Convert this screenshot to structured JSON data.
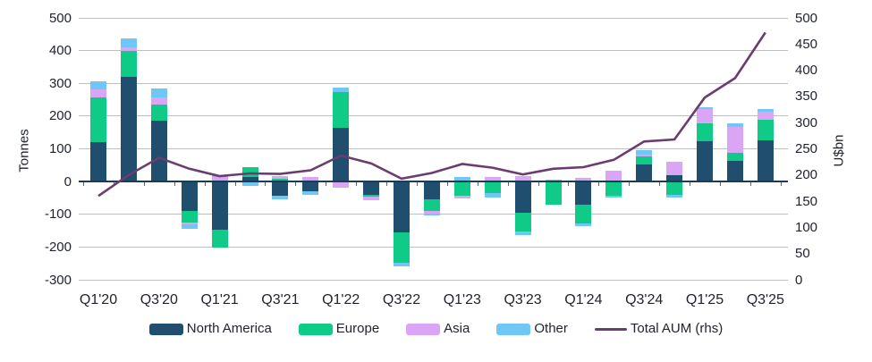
{
  "chart_data": {
    "type": "combo-stacked-bar-line",
    "title": "",
    "categories": [
      "Q1'20",
      "Q2'20",
      "Q3'20",
      "Q4'20",
      "Q1'21",
      "Q2'21",
      "Q3'21",
      "Q4'21",
      "Q1'22",
      "Q2'22",
      "Q3'22",
      "Q4'22",
      "Q1'23",
      "Q2'23",
      "Q3'23",
      "Q4'23",
      "Q1'24",
      "Q2'24",
      "Q3'24",
      "Q4'24",
      "Q1'25",
      "Q2'25",
      "Q3'25"
    ],
    "x_tick_step": 2,
    "bar_series": [
      {
        "name": "North America",
        "color": "#1F4E6E",
        "values": [
          121,
          321,
          185,
          -90,
          -147,
          14,
          -43,
          -31,
          164,
          -40,
          -154,
          -55,
          0,
          0,
          -95,
          0,
          -71,
          0,
          51,
          19,
          124,
          64,
          126
        ]
      },
      {
        "name": "Europe",
        "color": "#0FCB87",
        "values": [
          135,
          79,
          50,
          -35,
          -55,
          30,
          8,
          0,
          110,
          -5,
          -95,
          -36,
          -42,
          -36,
          -58,
          -71,
          -56,
          -42,
          25,
          -40,
          54,
          23,
          63
        ]
      },
      {
        "name": "Asia",
        "color": "#DBA5F5",
        "values": [
          25,
          11,
          23,
          -6,
          13,
          -3,
          9,
          13,
          -20,
          -11,
          0,
          -7,
          -9,
          14,
          16,
          0,
          11,
          32,
          5,
          41,
          43,
          79,
          25
        ]
      },
      {
        "name": "Other",
        "color": "#6FC7F5",
        "values": [
          24,
          27,
          25,
          -13,
          7,
          -10,
          -11,
          -11,
          13,
          0,
          -9,
          -6,
          14,
          -12,
          -11,
          7,
          -9,
          -8,
          16,
          -10,
          7,
          12,
          7
        ]
      }
    ],
    "line_series": {
      "name": "Total AUM (rhs)",
      "color": "#6B3C70",
      "values": [
        160,
        200,
        233,
        212,
        198,
        203,
        202,
        209,
        237,
        222,
        193,
        204,
        221,
        214,
        201,
        212,
        215,
        229,
        264,
        268,
        348,
        385,
        472
      ]
    },
    "left_axis": {
      "title": "Tonnes",
      "min": -300,
      "max": 500,
      "step": 100
    },
    "right_axis": {
      "title": "U$bn",
      "min": 0,
      "max": 500,
      "step": 50
    },
    "grid": true,
    "legend_position": "bottom",
    "legend": [
      "North America",
      "Europe",
      "Asia",
      "Other",
      "Total AUM (rhs)"
    ]
  }
}
